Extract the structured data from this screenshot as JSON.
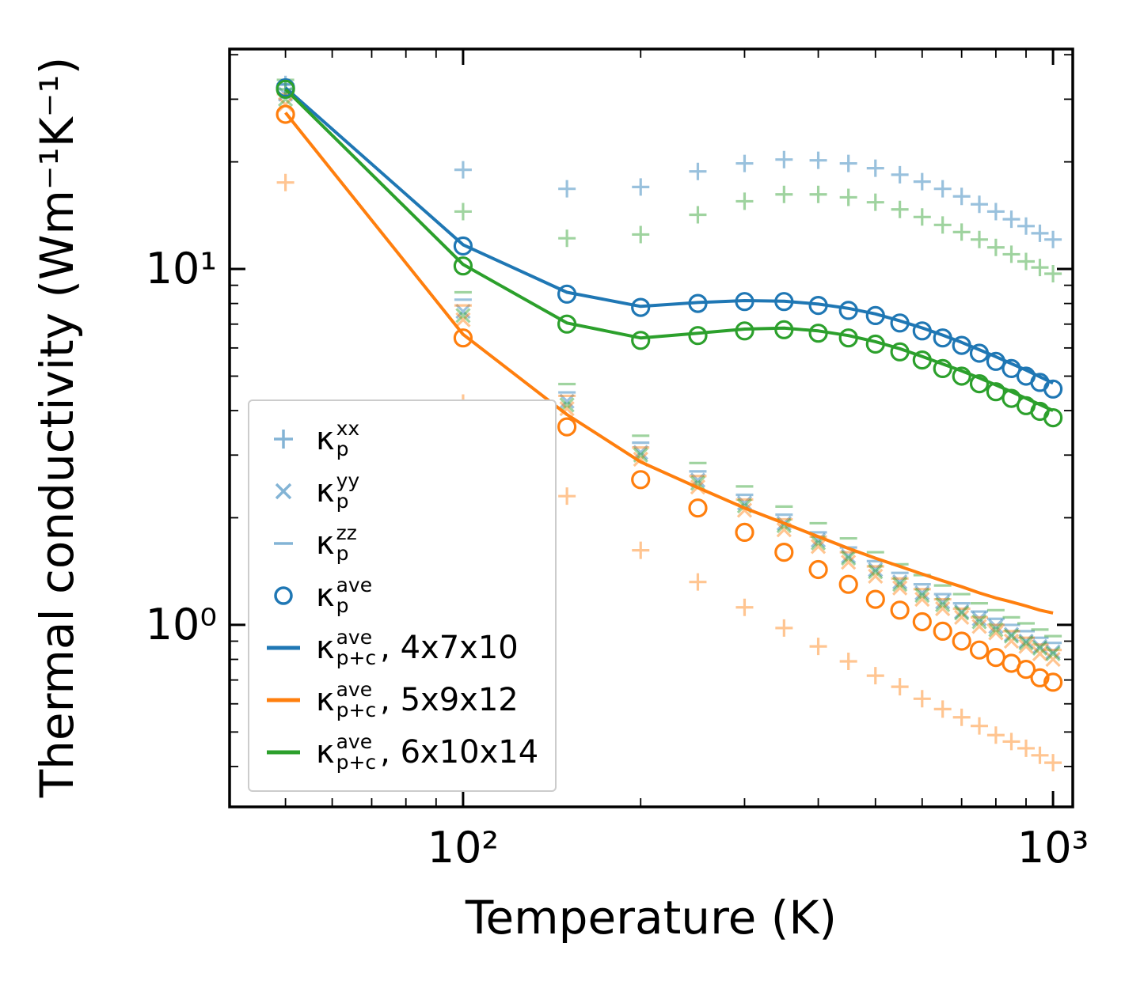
{
  "figure": {
    "xlabel": "Temperature (K)",
    "ylabel": "Thermal conductivity (Wm⁻¹K⁻¹)"
  },
  "legend": {
    "items": [
      {
        "kappa": "κ",
        "sup": "xx",
        "sub": "p",
        "suffix": "",
        "marker": "plus",
        "color": "blue",
        "light": true
      },
      {
        "kappa": "κ",
        "sup": "yy",
        "sub": "p",
        "suffix": "",
        "marker": "x",
        "color": "blue",
        "light": true
      },
      {
        "kappa": "κ",
        "sup": "zz",
        "sub": "p",
        "suffix": "",
        "marker": "dash",
        "color": "blue",
        "light": true
      },
      {
        "kappa": "κ",
        "sup": "ave",
        "sub": "p",
        "suffix": "",
        "marker": "circle",
        "color": "blue",
        "light": false
      },
      {
        "kappa": "κ",
        "sup": "ave",
        "sub": "p+c",
        "suffix": ", 4x7x10",
        "marker": "line",
        "color": "blue",
        "light": false
      },
      {
        "kappa": "κ",
        "sup": "ave",
        "sub": "p+c",
        "suffix": ", 5x9x12",
        "marker": "line",
        "color": "orange",
        "light": false
      },
      {
        "kappa": "κ",
        "sup": "ave",
        "sub": "p+c",
        "suffix": ", 6x10x14",
        "marker": "line",
        "color": "green",
        "light": false
      }
    ]
  },
  "chart_data": {
    "type": "line",
    "subtype": "log-log line + scatter",
    "title": "",
    "xlabel": "Temperature (K)",
    "ylabel": "Thermal conductivity (Wm⁻¹K⁻¹)",
    "axes": {
      "xscale": "log",
      "yscale": "log",
      "xlim": [
        40.2,
        1080
      ],
      "ylim": [
        0.308,
        41.5
      ]
    },
    "grid": false,
    "legend_position": "lower-left",
    "palette": {
      "blue": "#1f77b4",
      "orange": "#ff7f0e",
      "green": "#2ca02c"
    },
    "x_ticks": [
      {
        "t": 100,
        "label": "10²"
      },
      {
        "t": 1000,
        "label": "10³"
      }
    ],
    "x_minor_ticks": [
      50,
      60,
      70,
      80,
      90,
      200,
      300,
      400,
      500,
      600,
      700,
      800,
      900
    ],
    "y_ticks": [
      {
        "v": 1,
        "label": "10⁰"
      },
      {
        "v": 10,
        "label": "10¹"
      }
    ],
    "y_minor_ticks": [
      0.4,
      0.5,
      0.6,
      0.7,
      0.8,
      0.9,
      2,
      3,
      4,
      5,
      6,
      7,
      8,
      9,
      20,
      30,
      40
    ],
    "temperatures": [
      50,
      100,
      150,
      200,
      250,
      300,
      350,
      400,
      450,
      500,
      550,
      600,
      650,
      700,
      750,
      800,
      850,
      900,
      950,
      1000
    ],
    "series": [
      {
        "id": "kp-xx-4x7x10",
        "kind": "component",
        "marker": "plus",
        "color": "blue",
        "alpha": 0.45,
        "values": [
          33,
          19,
          16.8,
          17.0,
          18.8,
          19.8,
          20.3,
          20.2,
          19.8,
          19.2,
          18.4,
          17.6,
          16.8,
          16.0,
          15.2,
          14.5,
          13.8,
          13.2,
          12.6,
          12.1
        ]
      },
      {
        "id": "kp-yy-4x7x10",
        "kind": "component",
        "marker": "x",
        "color": "blue",
        "alpha": 0.45,
        "values": [
          31,
          7.6,
          4.25,
          3.05,
          2.55,
          2.2,
          1.93,
          1.73,
          1.56,
          1.43,
          1.32,
          1.23,
          1.16,
          1.09,
          1.04,
          0.99,
          0.94,
          0.9,
          0.87,
          0.84
        ]
      },
      {
        "id": "kp-zz-4x7x10",
        "kind": "component",
        "marker": "dash",
        "color": "blue",
        "alpha": 0.45,
        "values": [
          33,
          8.2,
          4.5,
          3.25,
          2.7,
          2.32,
          2.04,
          1.82,
          1.65,
          1.51,
          1.4,
          1.3,
          1.22,
          1.15,
          1.09,
          1.04,
          1.0,
          0.96,
          0.92,
          0.89
        ]
      },
      {
        "id": "kp-xx-5x9x12",
        "kind": "component",
        "marker": "plus",
        "color": "orange",
        "alpha": 0.45,
        "values": [
          17.5,
          4.2,
          2.3,
          1.62,
          1.32,
          1.12,
          0.98,
          0.87,
          0.79,
          0.72,
          0.67,
          0.62,
          0.58,
          0.55,
          0.52,
          0.49,
          0.47,
          0.45,
          0.43,
          0.41
        ]
      },
      {
        "id": "kp-yy-5x9x12",
        "kind": "component",
        "marker": "x",
        "color": "orange",
        "alpha": 0.45,
        "values": [
          29,
          7.2,
          4.05,
          2.92,
          2.44,
          2.1,
          1.85,
          1.66,
          1.5,
          1.37,
          1.27,
          1.18,
          1.11,
          1.05,
          0.99,
          0.95,
          0.9,
          0.87,
          0.83,
          0.8
        ]
      },
      {
        "id": "kp-zz-5x9x12",
        "kind": "component",
        "marker": "dash",
        "color": "orange",
        "alpha": 0.45,
        "values": [
          31,
          7.9,
          4.4,
          3.15,
          2.62,
          2.25,
          1.98,
          1.77,
          1.6,
          1.46,
          1.35,
          1.26,
          1.18,
          1.11,
          1.05,
          1.0,
          0.96,
          0.92,
          0.88,
          0.85
        ]
      },
      {
        "id": "kp-xx-6x10x14",
        "kind": "component",
        "marker": "plus",
        "color": "green",
        "alpha": 0.45,
        "values": [
          32,
          14.5,
          12.2,
          12.5,
          14.2,
          15.5,
          16.2,
          16.2,
          15.9,
          15.4,
          14.7,
          14.0,
          13.3,
          12.7,
          12.1,
          11.5,
          11.0,
          10.5,
          10.1,
          9.7
        ]
      },
      {
        "id": "kp-yy-6x10x14",
        "kind": "component",
        "marker": "x",
        "color": "green",
        "alpha": 0.45,
        "values": [
          30,
          7.4,
          4.15,
          3.0,
          2.5,
          2.16,
          1.9,
          1.7,
          1.54,
          1.41,
          1.3,
          1.21,
          1.14,
          1.08,
          1.02,
          0.97,
          0.93,
          0.89,
          0.86,
          0.83
        ]
      },
      {
        "id": "kp-zz-6x10x14",
        "kind": "component",
        "marker": "dash",
        "color": "green",
        "alpha": 0.45,
        "values": [
          34,
          8.6,
          4.75,
          3.4,
          2.85,
          2.45,
          2.15,
          1.93,
          1.75,
          1.6,
          1.48,
          1.38,
          1.29,
          1.22,
          1.15,
          1.1,
          1.05,
          1.01,
          0.97,
          0.93
        ]
      },
      {
        "id": "kpc-ave-4x7x10-line",
        "kind": "line",
        "color": "blue",
        "values": [
          32.3,
          11.7,
          8.6,
          7.85,
          8.05,
          8.15,
          8.12,
          7.97,
          7.75,
          7.48,
          7.15,
          6.83,
          6.52,
          6.22,
          5.93,
          5.67,
          5.42,
          5.2,
          4.98,
          4.78
        ]
      },
      {
        "id": "kpc-ave-5x9x12-line",
        "kind": "line",
        "color": "orange",
        "values": [
          27.5,
          6.55,
          3.9,
          2.87,
          2.43,
          2.13,
          1.93,
          1.77,
          1.64,
          1.54,
          1.46,
          1.39,
          1.33,
          1.28,
          1.23,
          1.19,
          1.16,
          1.13,
          1.1,
          1.08
        ]
      },
      {
        "id": "kpc-ave-6x10x14-line",
        "kind": "line",
        "color": "green",
        "values": [
          32,
          10.3,
          7.05,
          6.4,
          6.6,
          6.78,
          6.82,
          6.7,
          6.5,
          6.25,
          5.97,
          5.68,
          5.41,
          5.17,
          4.94,
          4.72,
          4.52,
          4.33,
          4.16,
          4.0
        ]
      },
      {
        "id": "kp-ave-4x7x10",
        "kind": "ave",
        "marker": "circle",
        "color": "blue",
        "values": [
          32.3,
          11.6,
          8.5,
          7.8,
          8.0,
          8.1,
          8.1,
          7.9,
          7.65,
          7.4,
          7.05,
          6.7,
          6.4,
          6.1,
          5.8,
          5.5,
          5.25,
          5.0,
          4.8,
          4.6
        ]
      },
      {
        "id": "kp-ave-5x9x12",
        "kind": "ave",
        "marker": "circle",
        "color": "orange",
        "values": [
          27.2,
          6.4,
          3.6,
          2.56,
          2.13,
          1.82,
          1.6,
          1.43,
          1.3,
          1.18,
          1.1,
          1.02,
          0.96,
          0.9,
          0.85,
          0.81,
          0.78,
          0.75,
          0.71,
          0.69
        ]
      },
      {
        "id": "kp-ave-6x10x14",
        "kind": "ave",
        "marker": "circle",
        "color": "green",
        "values": [
          32,
          10.2,
          7.0,
          6.3,
          6.5,
          6.7,
          6.75,
          6.6,
          6.4,
          6.15,
          5.85,
          5.55,
          5.25,
          5.0,
          4.76,
          4.52,
          4.33,
          4.13,
          3.98,
          3.82
        ]
      }
    ]
  }
}
